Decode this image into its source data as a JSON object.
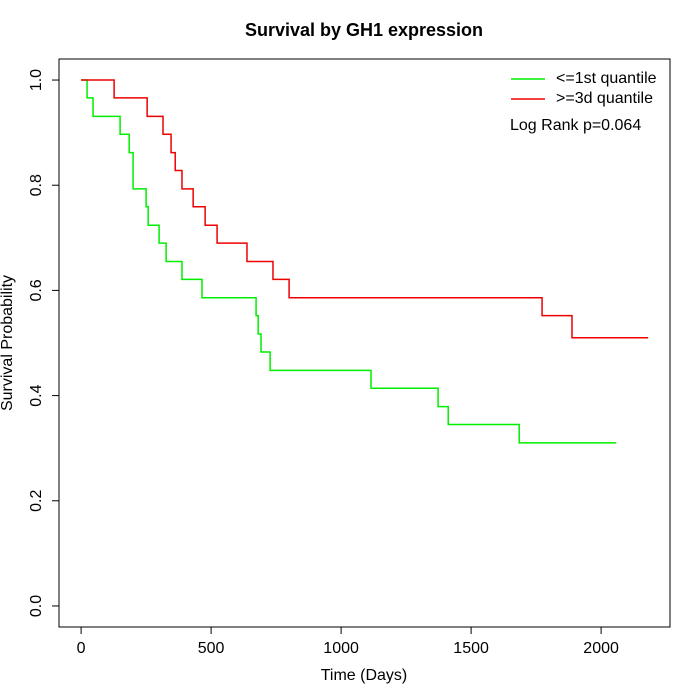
{
  "chart_data": {
    "type": "step",
    "title": "Survival by GH1 expression",
    "x_label": "Time (Days)",
    "y_label": "Survival Probability",
    "annotation": "Log Rank p=0.064",
    "legend_position": "top-right",
    "xlim": [
      -85,
      2265
    ],
    "ylim": [
      -0.04,
      1.04
    ],
    "xticks": [
      0,
      500,
      1000,
      1500,
      2000
    ],
    "yticks": [
      {
        "value": 0,
        "label": "0.0"
      },
      {
        "value": 0.2,
        "label": "0.2"
      },
      {
        "value": 0.4,
        "label": "0.4"
      },
      {
        "value": 0.6,
        "label": "0.6"
      },
      {
        "value": 0.8,
        "label": "0.8"
      },
      {
        "value": 1,
        "label": "1.0"
      }
    ],
    "series": [
      {
        "name": "<=1st quantile",
        "color": "#00ee00",
        "x": [
          0,
          23,
          46,
          150,
          185,
          200,
          250,
          258,
          300,
          327,
          388,
          465,
          673,
          681,
          692,
          727,
          1115,
          1373,
          1412,
          1685,
          2058
        ],
        "values": [
          1,
          0.966,
          0.931,
          0.897,
          0.862,
          0.793,
          0.759,
          0.724,
          0.69,
          0.655,
          0.621,
          0.586,
          0.552,
          0.517,
          0.483,
          0.448,
          0.414,
          0.379,
          0.345,
          0.31,
          0.31
        ]
      },
      {
        "name": ">=3d quantile",
        "color": "#ee0000",
        "x": [
          0,
          127,
          254,
          315,
          346,
          362,
          388,
          431,
          477,
          523,
          638,
          738,
          800,
          1773,
          1888,
          2181
        ],
        "values": [
          1,
          0.966,
          0.931,
          0.897,
          0.862,
          0.828,
          0.793,
          0.759,
          0.724,
          0.69,
          0.655,
          0.621,
          0.586,
          0.552,
          0.51,
          0.51
        ]
      }
    ]
  }
}
